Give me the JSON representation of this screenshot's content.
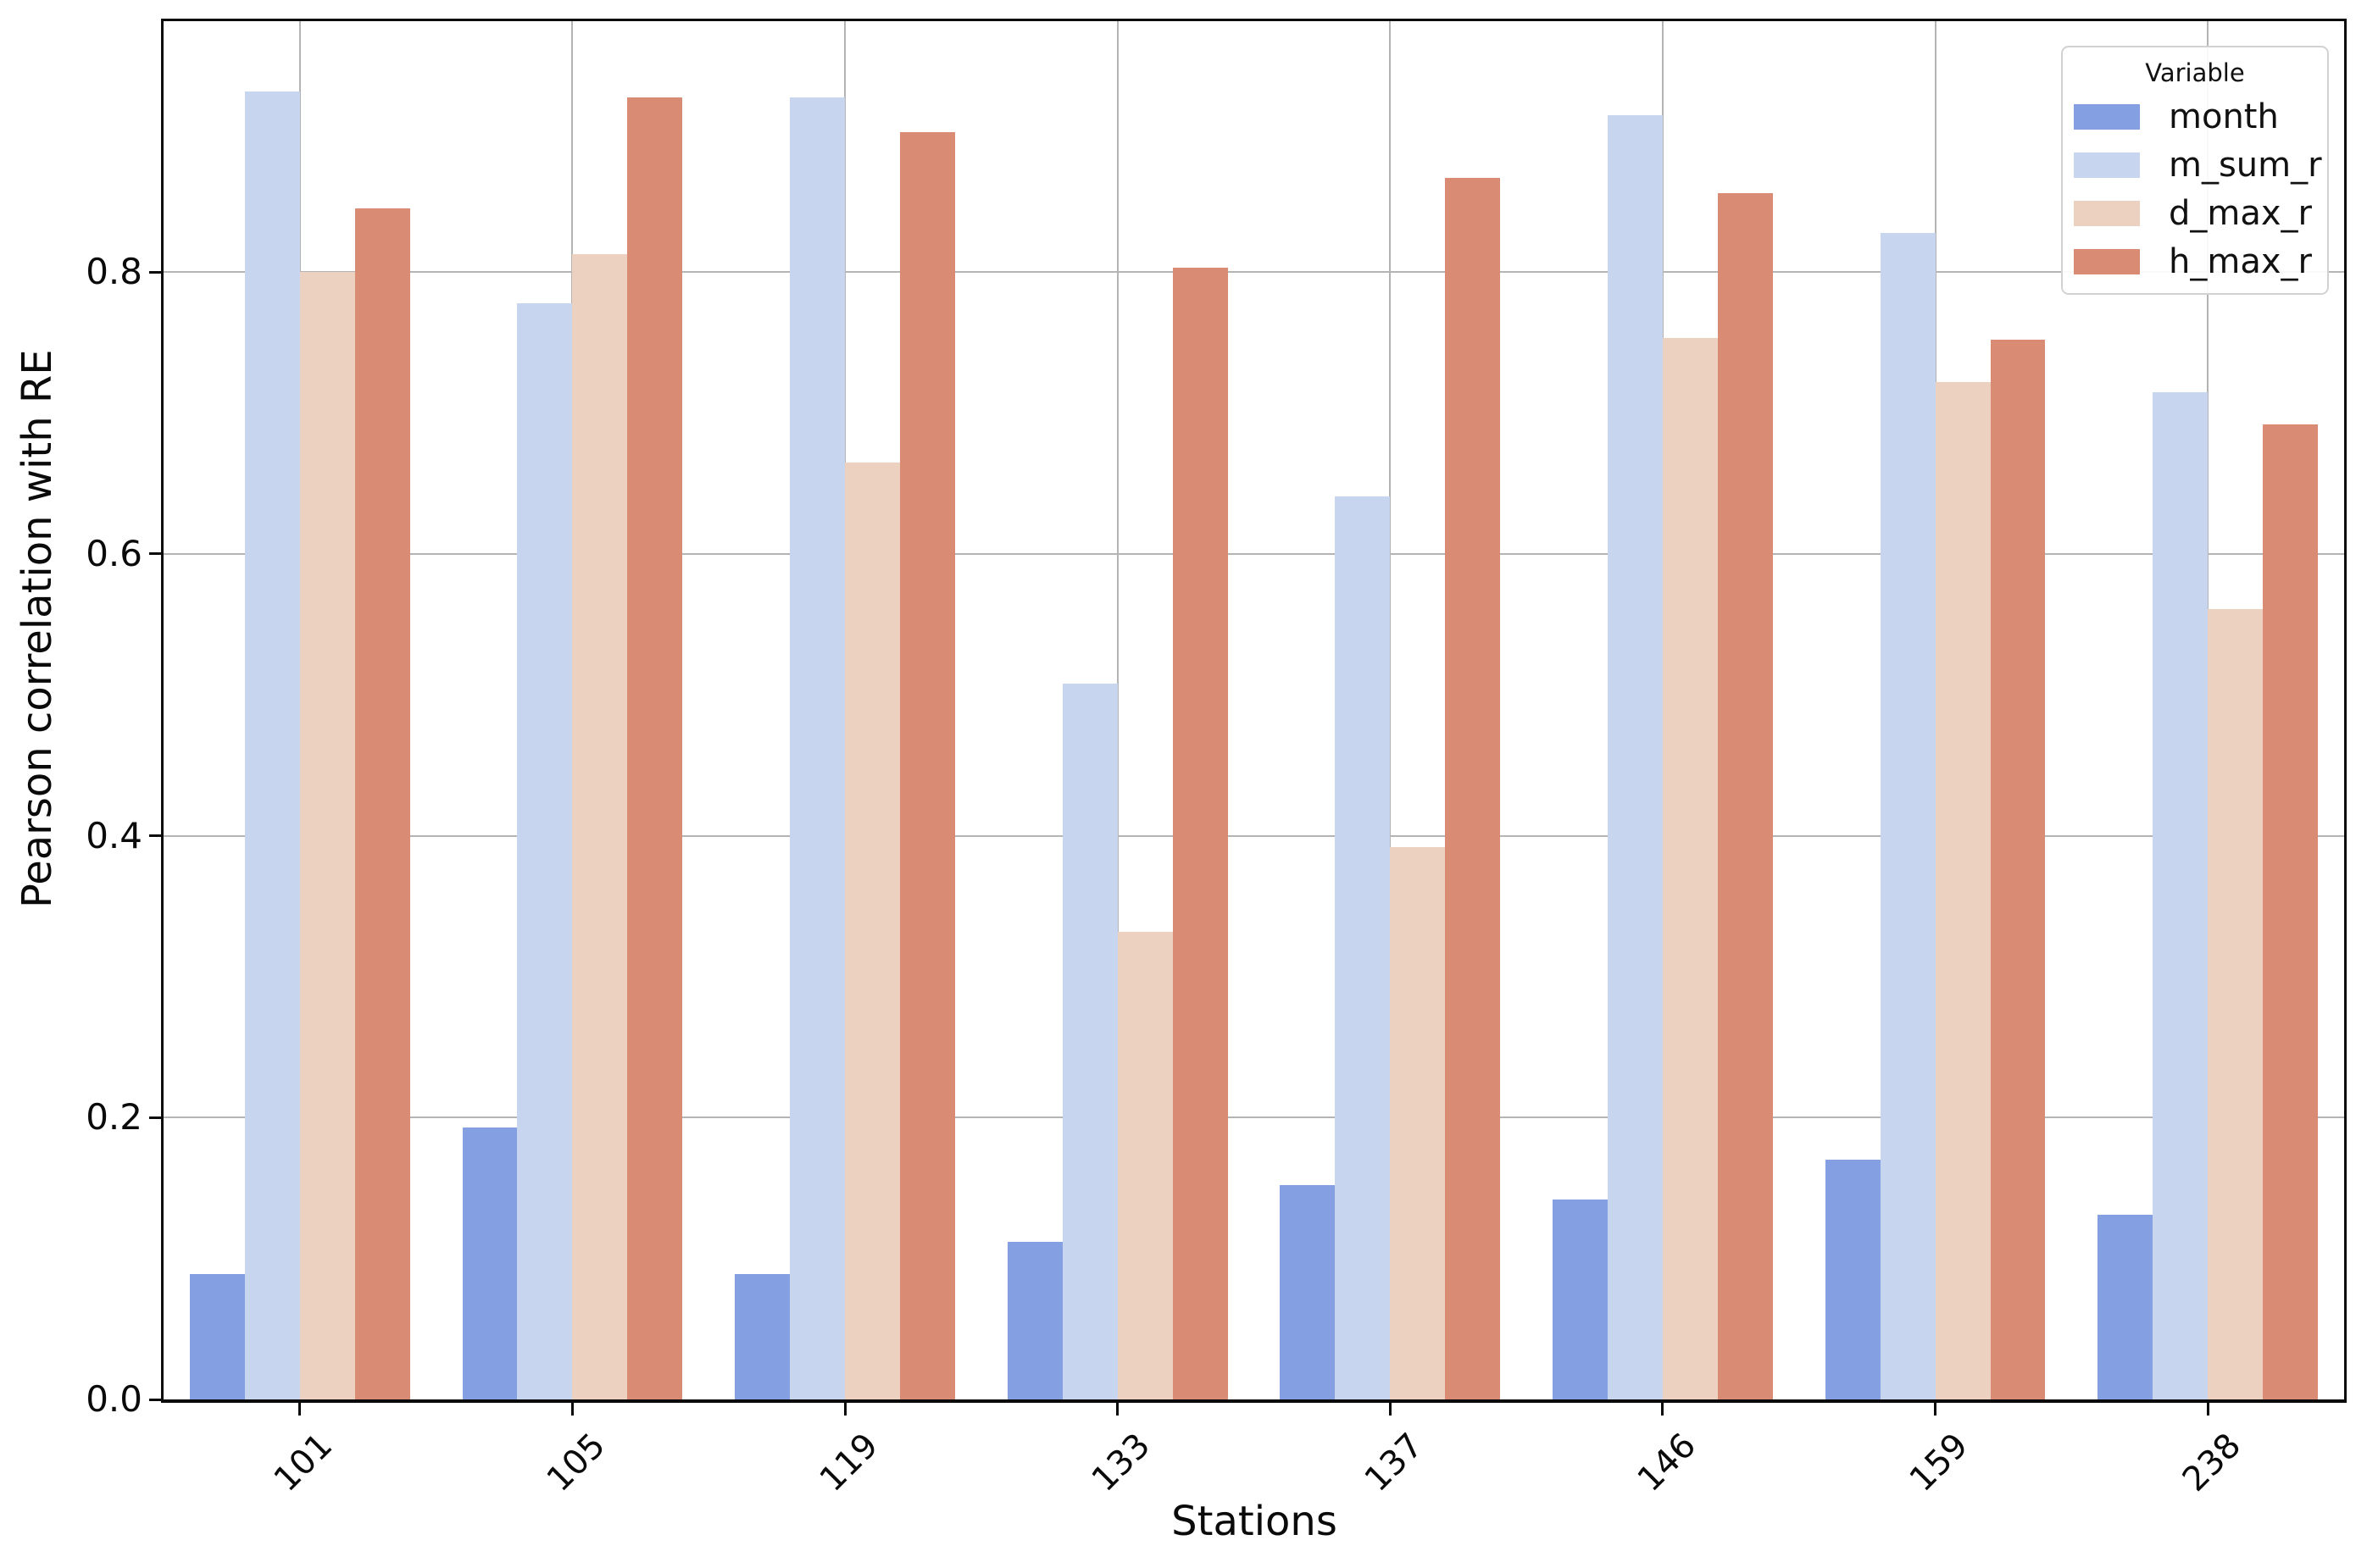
{
  "chart_data": {
    "type": "bar",
    "title": "",
    "xlabel": "Stations",
    "ylabel": "Pearson correlation with RE",
    "categories": [
      "101",
      "105",
      "119",
      "133",
      "137",
      "146",
      "159",
      "238"
    ],
    "series": [
      {
        "name": "month",
        "color": "#84a0e2",
        "values": [
          0.089,
          0.193,
          0.089,
          0.112,
          0.152,
          0.142,
          0.17,
          0.131
        ]
      },
      {
        "name": "m_sum_r",
        "color": "#c7d5ef",
        "values": [
          0.928,
          0.778,
          0.924,
          0.508,
          0.641,
          0.911,
          0.828,
          0.715
        ]
      },
      {
        "name": "d_max_r",
        "color": "#ecd0c0",
        "values": [
          0.8,
          0.813,
          0.665,
          0.332,
          0.392,
          0.753,
          0.722,
          0.561
        ]
      },
      {
        "name": "h_max_r",
        "color": "#d98b74",
        "values": [
          0.845,
          0.924,
          0.899,
          0.803,
          0.867,
          0.856,
          0.752,
          0.692
        ]
      }
    ],
    "yticks": [
      {
        "label": "0.0",
        "value": 0.0
      },
      {
        "label": "0.2",
        "value": 0.2
      },
      {
        "label": "0.4",
        "value": 0.4
      },
      {
        "label": "0.6",
        "value": 0.6
      },
      {
        "label": "0.8",
        "value": 0.8
      }
    ],
    "ylim": [
      0,
      0.978
    ],
    "grid": true,
    "legend_position": "upper right",
    "legend_title": "Variable",
    "grid_color": "#b4b4b4",
    "spine_color": "#0a0a0a"
  }
}
